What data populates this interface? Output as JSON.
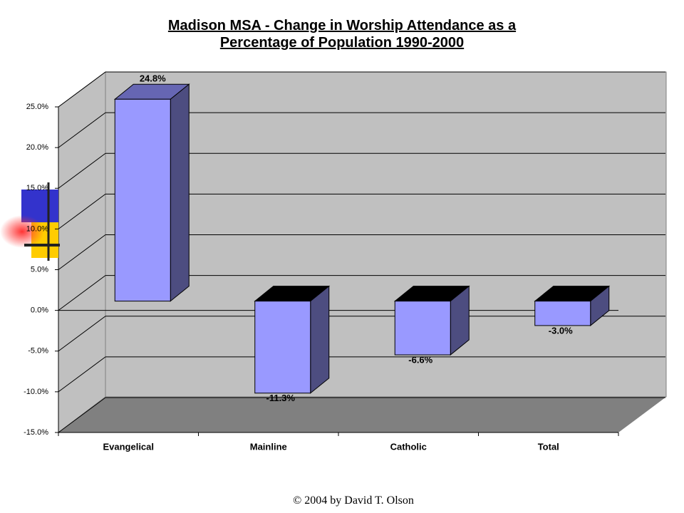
{
  "chart_data": {
    "type": "bar3d",
    "title": "Madison MSA - Change in Worship Attendance as a Percentage of Population 1990-2000",
    "categories": [
      "Evangelical",
      "Mainline",
      "Catholic",
      "Total"
    ],
    "values": [
      24.8,
      -11.3,
      -6.6,
      -3.0
    ],
    "value_labels": [
      "24.8%",
      "-11.3%",
      "-6.6%",
      "-3.0%"
    ],
    "color": "#9999ff",
    "ylim": [
      -15,
      25
    ],
    "yticks": [
      {
        "value": -15,
        "label": "-15.0%"
      },
      {
        "value": -10,
        "label": "-10.0%"
      },
      {
        "value": -5,
        "label": "-5.0%"
      },
      {
        "value": 0,
        "label": "0.0%"
      },
      {
        "value": 5,
        "label": "5.0%"
      },
      {
        "value": 10,
        "label": "10.0%"
      },
      {
        "value": 15,
        "label": "15.0%"
      },
      {
        "value": 20,
        "label": "20.0%"
      },
      {
        "value": 25,
        "label": "25.0%"
      }
    ],
    "grid": true
  },
  "footer": "© 2004 by David T. Olson"
}
